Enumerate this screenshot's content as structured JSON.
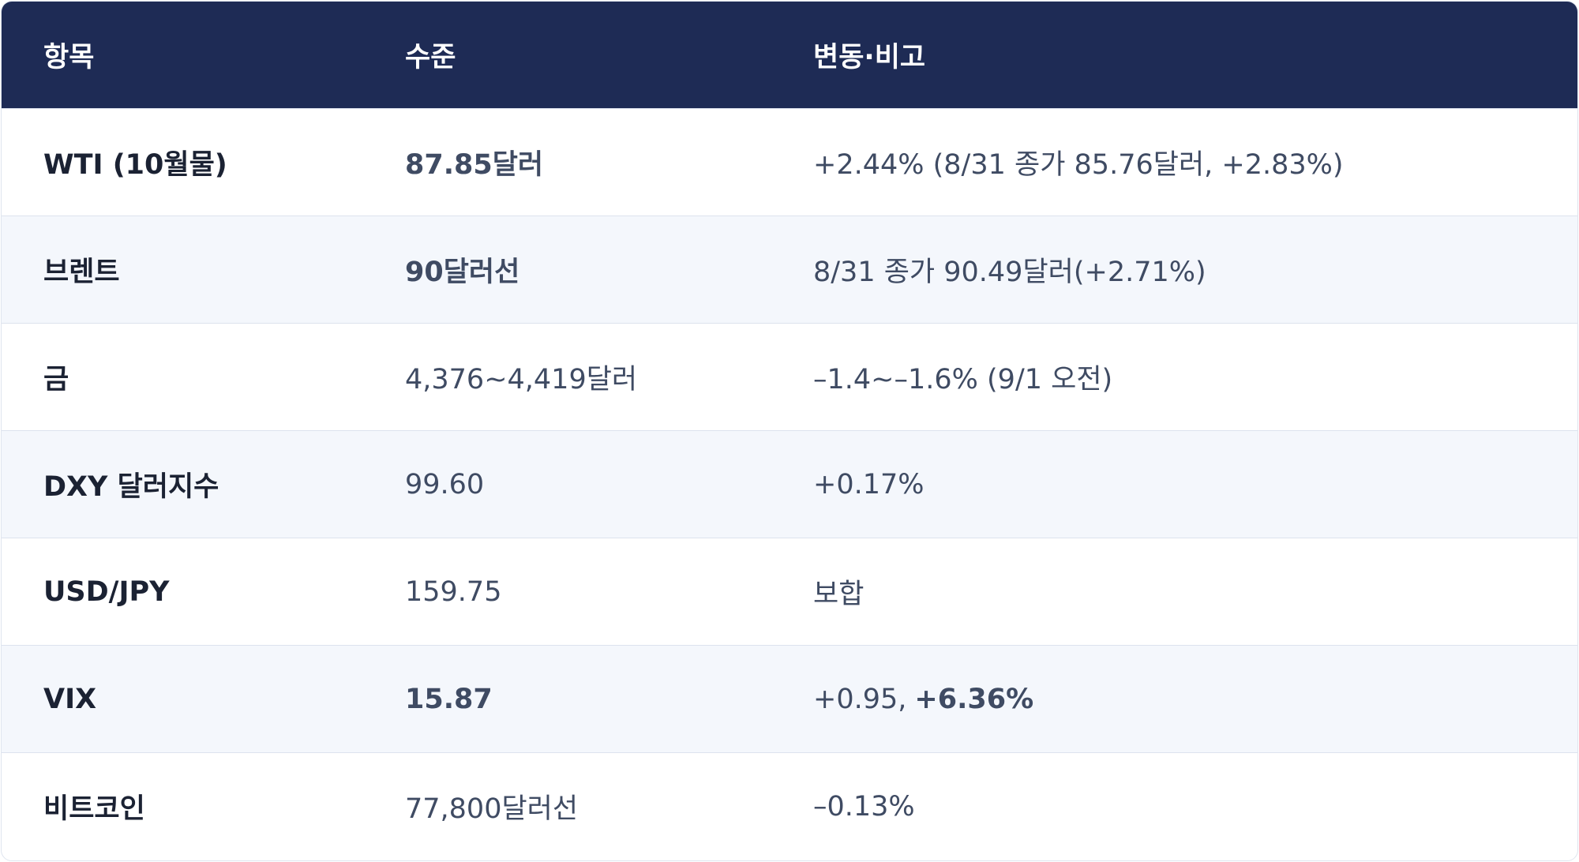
{
  "table": {
    "header": [
      "항목",
      "수준",
      "변동·비고"
    ],
    "rows": [
      [
        "WTI (10월물)",
        "87.85달러",
        "+2.44% (8/31 종가 85.76달러, +2.83%)"
      ],
      [
        "브렌트",
        "90달러선",
        "8/31 종가 90.49달러(+2.71%)"
      ],
      [
        "금",
        "4,376~4,419달러",
        "–1.4~–1.6% (9/1 오전)"
      ],
      [
        "DXY 달러지수",
        "99.60",
        "+0.17%"
      ],
      [
        "USD/JPY",
        "159.75",
        "보합"
      ],
      [
        "VIX",
        "15.87",
        [
          "+0.95,",
          "+6.36%"
        ]
      ],
      [
        "비트코인",
        "77,800달러선",
        "–0.13%"
      ]
    ]
  }
}
